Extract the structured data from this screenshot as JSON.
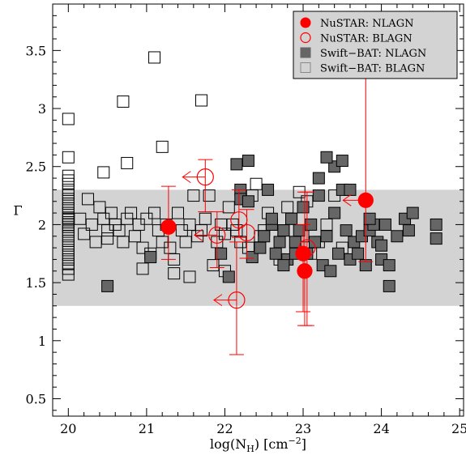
{
  "chart_data": {
    "type": "scatter",
    "title": "",
    "xlabel_main": "log(N",
    "xlabel_sub": "H",
    "xlabel_tail": ") [cm",
    "xlabel_sup": "−2",
    "xlabel_end": "]",
    "ylabel": "Γ",
    "xlim": [
      19.8,
      25.05
    ],
    "ylim": [
      0.35,
      3.9
    ],
    "xticks": [
      20,
      21,
      22,
      23,
      24,
      25
    ],
    "xtick_labels": [
      "20",
      "21",
      "22",
      "23",
      "24",
      "25"
    ],
    "yticks": [
      0.5,
      1,
      1.5,
      2,
      2.5,
      3,
      3.5
    ],
    "ytick_labels": [
      "0.5",
      "1",
      "1.5",
      "2",
      "2.5",
      "3",
      "3.5"
    ],
    "shaded_band": [
      1.3,
      2.3
    ],
    "legend": {
      "position": "top-right",
      "entries": [
        {
          "label": "NuSTAR: NLAGN",
          "marker": "filled-circle",
          "color": "#ff0000"
        },
        {
          "label": "NuSTAR: BLAGN",
          "marker": "open-circle",
          "color": "#ff0000"
        },
        {
          "label": "Swift−BAT: NLAGN",
          "marker": "filled-square",
          "color": "#666666"
        },
        {
          "label": "Swift−BAT: BLAGN",
          "marker": "open-square",
          "color": "#888888"
        }
      ]
    },
    "series": [
      {
        "name": "Swift−BAT: BLAGN",
        "x": [
          20,
          20,
          20,
          20,
          20,
          20,
          20,
          20,
          20,
          20,
          20,
          20,
          20,
          20,
          20,
          20,
          20,
          20,
          20,
          20,
          20,
          20,
          20,
          20,
          20,
          20,
          20.15,
          20.2,
          20.25,
          20.3,
          20.35,
          20.4,
          20.45,
          20.5,
          20.5,
          20.55,
          20.6,
          20.65,
          20.7,
          20.75,
          20.8,
          20.85,
          20.9,
          20.95,
          21,
          21.05,
          21.1,
          21.15,
          21.2,
          21.25,
          21.3,
          21.35,
          21.4,
          21.45,
          21.5,
          21.55,
          21.6,
          21.65,
          21.7,
          21.75,
          21.8,
          21.85,
          21.9,
          21.95,
          22,
          22.05,
          22.1,
          22.15,
          22.2,
          22.3,
          22.35,
          22.4,
          22.45,
          22.5,
          22.55,
          22.6,
          22.7,
          22.75,
          22.8,
          22.85,
          22.9,
          22.95,
          23,
          23.05,
          23.1,
          23.2,
          23.3,
          23.4,
          23.5,
          20.45,
          20.75,
          20.7,
          21.1,
          21.7,
          21.2,
          20.95,
          21.35,
          21.55,
          22.0
        ],
        "y": [
          2.91,
          2.58,
          2.42,
          2.38,
          2.35,
          2.3,
          2.26,
          2.22,
          2.18,
          2.14,
          2.1,
          2.06,
          2.02,
          1.98,
          1.94,
          1.9,
          1.86,
          1.82,
          1.78,
          1.74,
          1.7,
          1.66,
          1.62,
          1.57,
          2.05,
          2.0,
          2.05,
          1.92,
          2.22,
          2.0,
          1.85,
          2.15,
          2.05,
          1.95,
          1.88,
          2.1,
          2.0,
          1.95,
          1.85,
          2.05,
          2.1,
          1.9,
          2.0,
          1.8,
          2.05,
          1.75,
          2.1,
          1.95,
          1.85,
          2.0,
          1.8,
          1.7,
          2.1,
          1.95,
          1.85,
          2.0,
          2.25,
          1.9,
          1.95,
          2.05,
          2.25,
          1.65,
          1.85,
          2.0,
          1.92,
          2.15,
          2.0,
          1.95,
          1.85,
          1.8,
          2.25,
          2.35,
          1.9,
          1.95,
          2.1,
          2.0,
          1.7,
          1.95,
          2.15,
          2.05,
          1.85,
          2.28,
          1.9,
          2.2,
          1.75,
          1.85,
          2.0,
          2.25,
          1.8,
          2.45,
          2.53,
          3.06,
          3.44,
          3.07,
          2.67,
          1.62,
          1.58,
          1.55,
          1.6
        ]
      },
      {
        "name": "Swift−BAT: NLAGN",
        "x": [
          20.5,
          21.05,
          22.05,
          22.15,
          22.2,
          22.2,
          22.3,
          22.35,
          22.45,
          22.5,
          22.55,
          22.6,
          22.65,
          22.7,
          22.75,
          22.8,
          22.85,
          22.9,
          22.95,
          23,
          23.05,
          23.1,
          23.15,
          23.2,
          23.25,
          23.3,
          23.35,
          23.4,
          23.45,
          23.5,
          23.55,
          23.6,
          23.65,
          23.7,
          23.75,
          23.8,
          23.85,
          23.9,
          23.95,
          24,
          24.05,
          24.1,
          24.2,
          24.3,
          24.35,
          24.4,
          24.7,
          24.7,
          21.95,
          22.3,
          22.6,
          22.75,
          23.2,
          23.4,
          23.5,
          23.6,
          23.85,
          24.0,
          24.1,
          23.3,
          22.9
        ],
        "y": [
          1.47,
          1.72,
          1.55,
          2.52,
          2.3,
          2.22,
          2.55,
          1.72,
          1.8,
          1.9,
          2.3,
          2.0,
          1.75,
          1.85,
          1.95,
          1.7,
          2.05,
          1.85,
          1.95,
          2.15,
          1.75,
          2.0,
          1.85,
          2.25,
          1.65,
          1.9,
          1.6,
          2.1,
          1.75,
          2.3,
          1.95,
          1.7,
          1.85,
          1.75,
          1.9,
          1.65,
          1.95,
          2.0,
          1.85,
          1.7,
          2.0,
          1.65,
          1.9,
          2.05,
          1.95,
          2.1,
          2.0,
          1.88,
          1.75,
          2.2,
          2.05,
          1.65,
          2.4,
          2.5,
          2.55,
          2.3,
          2.05,
          1.82,
          1.47,
          2.58,
          1.75
        ]
      },
      {
        "name": "NuSTAR: NLAGN",
        "x": [
          21.28,
          23.0,
          23.02,
          23.8
        ],
        "y": [
          1.98,
          1.75,
          1.6,
          2.21
        ],
        "yerr_low": [
          0.28,
          0.5,
          0.47,
          0.53
        ],
        "yerr_high": [
          0.35,
          0.25,
          0.68,
          1.57
        ],
        "upper_limit_x": [
          false,
          false,
          false,
          true
        ]
      },
      {
        "name": "NuSTAR: BLAGN",
        "x": [
          21.75,
          21.9,
          22.15,
          22.18,
          22.28,
          23.05
        ],
        "y": [
          2.41,
          1.91,
          1.35,
          2.04,
          1.93,
          1.8
        ],
        "yerr_low": [
          0.3,
          0.28,
          0.47,
          0.15,
          0.22,
          0.67
        ],
        "yerr_high": [
          0.15,
          0.2,
          0.5,
          0.26,
          0.2,
          0.48
        ],
        "upper_limit_x": [
          true,
          true,
          true,
          false,
          false,
          false
        ]
      }
    ]
  }
}
